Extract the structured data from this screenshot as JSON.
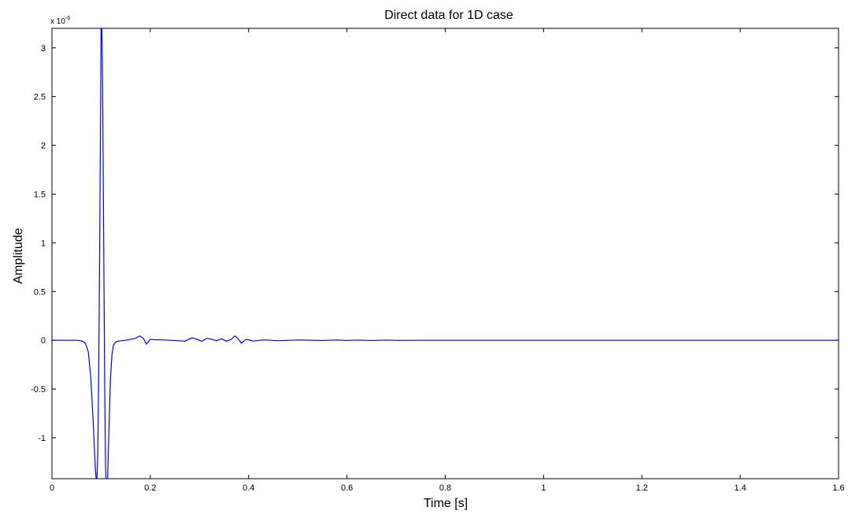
{
  "chart_data": {
    "type": "line",
    "title": "Direct data for 1D case",
    "xlabel": "Time [s]",
    "ylabel": "Amplitude",
    "y_multiplier_base": "x 10",
    "y_multiplier_exponent": "-6",
    "xlim": [
      0,
      1.6
    ],
    "ylim": [
      -1.42,
      3.2
    ],
    "x_ticks": [
      0,
      0.2,
      0.4,
      0.6,
      0.8,
      1,
      1.2,
      1.4,
      1.6
    ],
    "x_tick_labels": [
      "0",
      "0.2",
      "0.4",
      "0.6",
      "0.8",
      "1",
      "1.2",
      "1.4",
      "1.6"
    ],
    "y_ticks": [
      -1,
      -0.5,
      0,
      0.5,
      1,
      1.5,
      2,
      2.5,
      3
    ],
    "y_tick_labels": [
      "-1",
      "-0.5",
      "0",
      "0.5",
      "1",
      "1.5",
      "2",
      "2.5",
      "3"
    ],
    "grid": false,
    "line_color": "#0000ff",
    "series": [
      {
        "x": [
          0,
          0.05,
          0.06,
          0.068,
          0.074,
          0.079,
          0.084,
          0.088,
          0.091,
          0.093,
          0.095,
          0.097,
          0.099,
          0.1,
          0.101,
          0.103,
          0.105,
          0.107,
          0.109,
          0.111,
          0.113,
          0.116,
          0.119,
          0.122,
          0.125,
          0.129,
          0.134,
          0.14,
          0.15,
          0.16,
          0.17,
          0.178,
          0.186,
          0.192,
          0.2,
          0.21,
          0.22,
          0.24,
          0.26,
          0.27,
          0.285,
          0.295,
          0.305,
          0.315,
          0.325,
          0.335,
          0.345,
          0.355,
          0.365,
          0.372,
          0.378,
          0.385,
          0.395,
          0.41,
          0.43,
          0.46,
          0.5,
          0.55,
          0.58,
          0.6,
          0.62,
          0.65,
          0.68,
          0.7,
          0.75,
          0.8,
          1.0,
          1.2,
          1.4,
          1.6
        ],
        "y": [
          0,
          0,
          -0.005,
          -0.03,
          -0.12,
          -0.38,
          -0.85,
          -1.3,
          -1.5,
          -1.2,
          -0.4,
          0.9,
          2.4,
          3.3,
          3.4,
          2.6,
          1.2,
          -0.3,
          -1.3,
          -1.6,
          -1.45,
          -0.9,
          -0.4,
          -0.15,
          -0.05,
          -0.02,
          -0.01,
          -0.005,
          0.0,
          0.01,
          0.02,
          0.045,
          0.02,
          -0.04,
          0.01,
          0.005,
          0.005,
          0.0,
          -0.005,
          -0.01,
          0.025,
          0.01,
          -0.01,
          0.02,
          0.01,
          -0.005,
          0.015,
          -0.01,
          0.01,
          0.045,
          0.02,
          -0.03,
          0.01,
          -0.008,
          0.004,
          -0.004,
          0.003,
          -0.002,
          0.003,
          -0.002,
          0.002,
          -0.002,
          0.002,
          -0.001,
          0.0,
          0.0,
          0.0,
          0.0,
          0.0,
          0.0
        ]
      }
    ]
  }
}
